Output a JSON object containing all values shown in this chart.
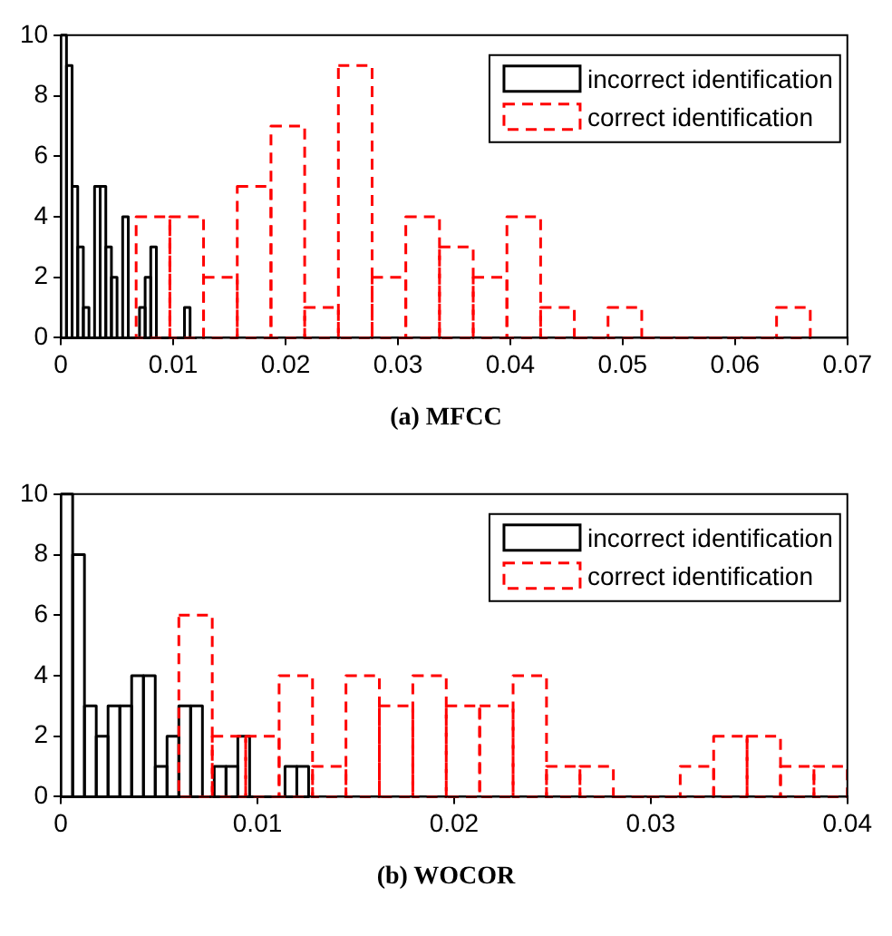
{
  "chart_data": [
    {
      "type": "bar",
      "annotations": [
        "(a) MFCC"
      ],
      "xlim": [
        0,
        0.07
      ],
      "xticks": [
        0,
        0.01,
        0.02,
        0.03,
        0.04,
        0.05,
        0.06,
        0.07
      ],
      "ylim": [
        0,
        10
      ],
      "yticks": [
        0,
        2,
        4,
        6,
        8,
        10
      ],
      "legend": "top right",
      "series": [
        {
          "name": "incorrect identification",
          "color": "#000000",
          "line_style": "solid",
          "x": [
            0.00025,
            0.00075,
            0.00125,
            0.00175,
            0.00225,
            0.00275,
            0.00325,
            0.00375,
            0.00425,
            0.00475,
            0.00525,
            0.00575,
            0.00625,
            0.00675,
            0.00725,
            0.00775,
            0.00825,
            0.00875,
            0.00925,
            0.00975,
            0.01025,
            0.01075,
            0.01125,
            0.01175
          ],
          "values": [
            10,
            9,
            5,
            3,
            1,
            0,
            5,
            5,
            3,
            2,
            0,
            4,
            0,
            0,
            1,
            2,
            3,
            0,
            0,
            0,
            0,
            0,
            1,
            0
          ]
        },
        {
          "name": "correct identification",
          "color": "#ff0000",
          "line_style": "dashed",
          "x": [
            0.0082,
            0.0112,
            0.0142,
            0.0172,
            0.0202,
            0.0232,
            0.0262,
            0.0292,
            0.0322,
            0.0352,
            0.0382,
            0.0412,
            0.0442,
            0.0472,
            0.0502,
            0.0532,
            0.0562,
            0.0592,
            0.0622,
            0.0652
          ],
          "values": [
            4,
            4,
            2,
            5,
            7,
            1,
            9,
            2,
            4,
            3,
            2,
            4,
            1,
            0,
            1,
            0,
            0,
            0,
            0,
            1
          ]
        }
      ]
    },
    {
      "type": "bar",
      "annotations": [
        "(b) WOCOR"
      ],
      "xlim": [
        0,
        0.04
      ],
      "xticks": [
        0,
        0.01,
        0.02,
        0.03,
        0.04
      ],
      "ylim": [
        0,
        10
      ],
      "yticks": [
        0,
        2,
        4,
        6,
        8,
        10
      ],
      "legend": "top right",
      "series": [
        {
          "name": "incorrect identification",
          "color": "#000000",
          "line_style": "solid",
          "x": [
            0.0003,
            0.0009,
            0.0015,
            0.0021,
            0.0027,
            0.0033,
            0.0039,
            0.0045,
            0.0051,
            0.0057,
            0.0063,
            0.0069,
            0.0075,
            0.0081,
            0.0087,
            0.0093,
            0.0099,
            0.0105,
            0.0111,
            0.0117,
            0.0123
          ],
          "values": [
            10,
            8,
            3,
            2,
            3,
            3,
            4,
            4,
            1,
            2,
            3,
            3,
            0,
            1,
            1,
            2,
            0,
            0,
            0,
            1,
            1
          ]
        },
        {
          "name": "correct identification",
          "color": "#ff0000",
          "line_style": "dashed",
          "x": [
            0.00685,
            0.00855,
            0.01025,
            0.01195,
            0.01365,
            0.01535,
            0.01705,
            0.01875,
            0.02045,
            0.02215,
            0.02385,
            0.02555,
            0.02725,
            0.02895,
            0.03065,
            0.03235,
            0.03405,
            0.03575,
            0.03745,
            0.03915
          ],
          "values": [
            6,
            2,
            2,
            4,
            1,
            4,
            3,
            4,
            3,
            3,
            4,
            1,
            1,
            0,
            0,
            1,
            2,
            2,
            1,
            1
          ]
        }
      ]
    }
  ]
}
